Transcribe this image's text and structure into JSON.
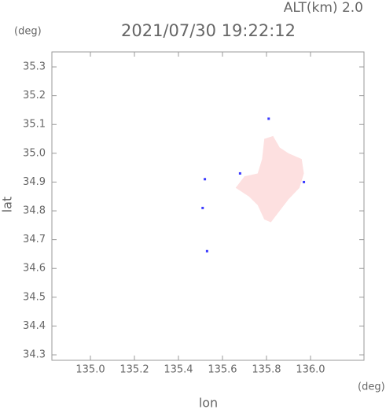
{
  "chart_data": {
    "type": "map",
    "title": "2021/07/30 19:22:12",
    "subtitle": "ALT(km) 2.0",
    "y_unit": "(deg)",
    "x_unit": "(deg)",
    "xlabel": "lon",
    "ylabel": "lat",
    "xlim": [
      134.825,
      136.243
    ],
    "ylim": [
      34.281,
      35.352
    ],
    "xticks": [
      {
        "value": 135,
        "label": "135.0"
      },
      135.2,
      135.4,
      135.6,
      135.8,
      {
        "value": 136,
        "label": "136.0"
      }
    ],
    "yticks": [
      34.3,
      34.4,
      34.5,
      34.6,
      34.7,
      34.8,
      34.9,
      {
        "value": 35,
        "label": "35.0"
      },
      35.1,
      35.2,
      35.3
    ],
    "regions": [
      {
        "color": "#fde0e0",
        "x": [
          135.79,
          135.83,
          135.86,
          135.9,
          135.96,
          135.97,
          135.95,
          135.9,
          135.86,
          135.82,
          135.79,
          135.76,
          135.72,
          135.66,
          135.7,
          135.76,
          135.78
        ],
        "y": [
          35.05,
          35.06,
          35.02,
          35.0,
          34.98,
          34.93,
          34.88,
          34.84,
          34.8,
          34.76,
          34.77,
          34.82,
          34.85,
          34.88,
          34.92,
          34.93,
          34.98
        ]
      }
    ],
    "points": {
      "color": "#3a3aff",
      "x": [
        135.52,
        135.51,
        135.53,
        135.81,
        135.68,
        135.97
      ],
      "y": [
        34.91,
        34.81,
        34.66,
        35.12,
        34.93,
        34.9
      ]
    }
  }
}
